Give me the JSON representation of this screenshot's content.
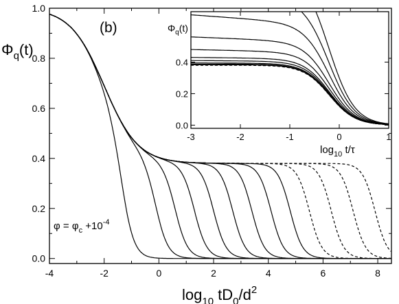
{
  "chart_data": [
    {
      "id": "main",
      "type": "line",
      "panel_label": "(b)",
      "ylabel_main": "Φ",
      "ylabel_sub": "q",
      "ylabel_rest": "(t)",
      "xlabel_main": "log",
      "xlabel_sub": "10",
      "xlabel_mid": " tD",
      "xlabel_sub2": "0",
      "xlabel_mid2": "/d",
      "xlabel_sup": "2",
      "xlim": [
        -4,
        8.5
      ],
      "ylim": [
        -0.02,
        1.0
      ],
      "xticks": [
        -4,
        -2,
        0,
        2,
        4,
        6,
        8
      ],
      "xtick_labels": [
        "-4",
        "-2",
        "0",
        "2",
        "4",
        "6",
        "8"
      ],
      "yticks": [
        0.0,
        0.2,
        0.4,
        0.6,
        0.8,
        1.0
      ],
      "ytick_labels": [
        "0.0",
        "0.2",
        "0.4",
        "0.6",
        "0.8",
        "1.0"
      ],
      "grid": false,
      "annotation": {
        "phi": "φ = φ",
        "sub": "c",
        "plus": " +10",
        "sup": "-4"
      },
      "master": {
        "plateau": 0.38,
        "decay_center": -2.0,
        "decay_width": 0.62
      },
      "series": [
        {
          "final_decay": -1.3,
          "style": "solid"
        },
        {
          "final_decay": -0.1,
          "style": "solid"
        },
        {
          "final_decay": 0.6,
          "style": "solid"
        },
        {
          "final_decay": 1.3,
          "style": "solid"
        },
        {
          "final_decay": 2.0,
          "style": "solid"
        },
        {
          "final_decay": 2.7,
          "style": "solid"
        },
        {
          "final_decay": 3.4,
          "style": "solid"
        },
        {
          "final_decay": 4.1,
          "style": "solid"
        },
        {
          "final_decay": 4.8,
          "style": "solid"
        },
        {
          "final_decay": 5.5,
          "style": "dashed"
        },
        {
          "final_decay": 6.3,
          "style": "dashed"
        },
        {
          "final_decay": 7.1,
          "style": "dashed"
        },
        {
          "final_decay": 7.9,
          "style": "dashed"
        }
      ]
    },
    {
      "id": "inset",
      "type": "line",
      "ylabel_main": "Φ",
      "ylabel_sub": "q",
      "ylabel_rest": "(t)",
      "xlabel_main": "log",
      "xlabel_sub": "10",
      "xlabel_rest": " t/τ",
      "xlim": [
        -3,
        1
      ],
      "ylim": [
        -0.02,
        0.72
      ],
      "xticks": [
        -3,
        -2,
        -1,
        0,
        1
      ],
      "xtick_labels": [
        "-3",
        "-2",
        "-1",
        "0",
        "1"
      ],
      "yticks": [
        0.0,
        0.2,
        0.4
      ],
      "ytick_labels": [
        "0.0",
        "0.2",
        "0.4"
      ],
      "grid": false,
      "series": [
        {
          "plateau": 1.1,
          "style": "solid"
        },
        {
          "plateau": 0.88,
          "style": "solid"
        },
        {
          "plateau": 0.7,
          "style": "solid"
        },
        {
          "plateau": 0.56,
          "style": "solid"
        },
        {
          "plateau": 0.48,
          "style": "solid"
        },
        {
          "plateau": 0.43,
          "style": "solid"
        },
        {
          "plateau": 0.41,
          "style": "solid"
        },
        {
          "plateau": 0.395,
          "style": "solid"
        },
        {
          "plateau": 0.388,
          "style": "solid"
        },
        {
          "plateau": 0.383,
          "style": "solid"
        },
        {
          "plateau": 0.38,
          "style": "dashed"
        }
      ]
    }
  ]
}
